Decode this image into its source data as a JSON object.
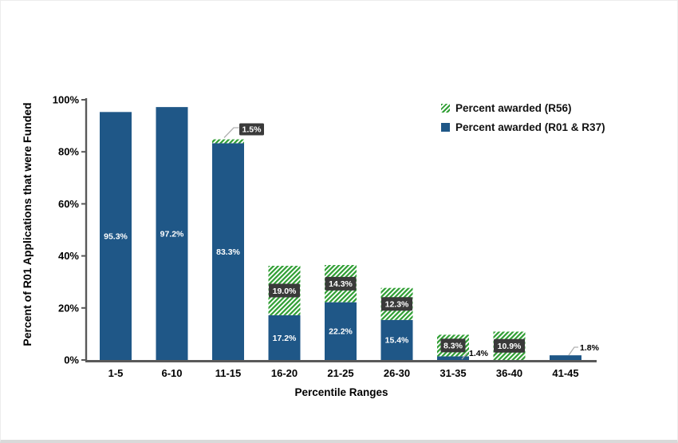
{
  "chart_data": {
    "type": "bar",
    "stacked": true,
    "title": "",
    "xlabel": "Percentile Ranges",
    "ylabel": "Percent of R01 Applications that were Funded",
    "categories": [
      "1-5",
      "6-10",
      "11-15",
      "16-20",
      "21-25",
      "26-30",
      "31-35",
      "36-40",
      "41-45"
    ],
    "series": [
      {
        "name": "Percent awarded (R01 & R37)",
        "values": [
          95.3,
          97.2,
          83.3,
          17.2,
          22.2,
          15.4,
          1.4,
          0,
          1.8
        ]
      },
      {
        "name": "Percent awarded (R56)",
        "values": [
          0,
          0,
          1.5,
          19.0,
          14.3,
          12.3,
          8.3,
          10.9,
          0
        ]
      }
    ],
    "value_labels": {
      "r01_inside": [
        "95.3%",
        "97.2%",
        "83.3%",
        "17.2%",
        "22.2%",
        "15.4%",
        "",
        "",
        ""
      ],
      "r01_callout": [
        "",
        "",
        "",
        "",
        "",
        "",
        "1.4%",
        "",
        "1.8%"
      ],
      "r56_boxed": [
        "",
        "",
        "1.5%",
        "19.0%",
        "14.3%",
        "12.3%",
        "8.3%",
        "10.9%",
        ""
      ]
    },
    "ylim": [
      0,
      100
    ],
    "yticks": [
      {
        "label": "0%",
        "value": 0
      },
      {
        "label": "20%",
        "value": 20
      },
      {
        "label": "40%",
        "value": 40
      },
      {
        "label": "60%",
        "value": 60
      },
      {
        "label": "80%",
        "value": 80
      },
      {
        "label": "100%",
        "value": 100
      }
    ],
    "grid": false,
    "legend_position": "top-right"
  },
  "legend": {
    "items": [
      {
        "label": "Percent awarded (R56)",
        "swatch": "green-hatch"
      },
      {
        "label": "Percent awarded (R01 & R37)",
        "swatch": "blue-solid"
      }
    ]
  },
  "colors": {
    "r01_blue": "#1f5787",
    "r56_green": "#2f9e33",
    "label_box": "#3a3a3a",
    "axis": "#595959",
    "leader": "#b0b0b0",
    "label_text_white": "#ffffff",
    "text_black": "#000000"
  }
}
